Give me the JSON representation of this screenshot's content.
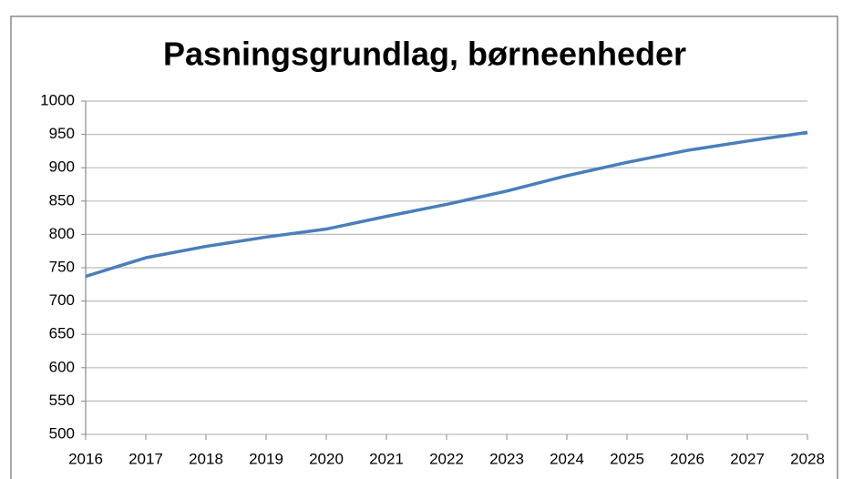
{
  "chart_data": {
    "type": "line",
    "title": "Pasningsgrundlag, børneenheder",
    "x": [
      2016,
      2017,
      2018,
      2019,
      2020,
      2021,
      2022,
      2023,
      2024,
      2025,
      2026,
      2027,
      2028
    ],
    "series": [
      {
        "name": "Pasningsgrundlag",
        "color": "#4a7ebb",
        "values": [
          737,
          765,
          782,
          796,
          808,
          827,
          845,
          865,
          888,
          908,
          926,
          940,
          953
        ]
      }
    ],
    "xlim": [
      2016,
      2028
    ],
    "xticks": [
      2016,
      2017,
      2018,
      2019,
      2020,
      2021,
      2022,
      2023,
      2024,
      2025,
      2026,
      2027,
      2028
    ],
    "ylim": [
      500,
      1000
    ],
    "yticks": [
      500,
      550,
      600,
      650,
      700,
      750,
      800,
      850,
      900,
      950,
      1000
    ],
    "grid": true
  }
}
